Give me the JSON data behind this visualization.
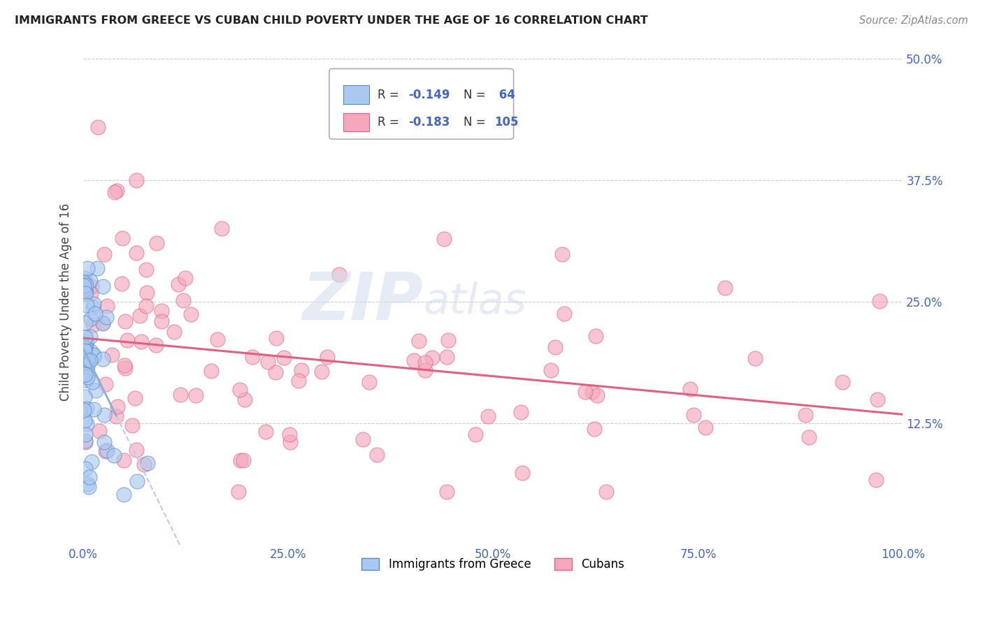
{
  "title": "IMMIGRANTS FROM GREECE VS CUBAN CHILD POVERTY UNDER THE AGE OF 16 CORRELATION CHART",
  "source": "Source: ZipAtlas.com",
  "ylabel": "Child Poverty Under the Age of 16",
  "xlim": [
    0,
    1.0
  ],
  "ylim": [
    0,
    0.5
  ],
  "xticks": [
    0.0,
    0.25,
    0.5,
    0.75,
    1.0
  ],
  "xtick_labels": [
    "0.0%",
    "25.0%",
    "50.0%",
    "75.0%",
    "100.0%"
  ],
  "yticks": [
    0.0,
    0.125,
    0.25,
    0.375,
    0.5
  ],
  "ytick_labels": [
    "",
    "12.5%",
    "25.0%",
    "37.5%",
    "50.0%"
  ],
  "legend_r1": "R = -0.149",
  "legend_n1": "N =  64",
  "legend_r2": "R = -0.183",
  "legend_n2": "N = 105",
  "series1_label": "Immigrants from Greece",
  "series2_label": "Cubans",
  "series1_color": "#aac8f0",
  "series2_color": "#f5a8bc",
  "series1_edge": "#5588cc",
  "series2_edge": "#dd6688",
  "line1_color": "#8ab0d8",
  "line2_color": "#e06080",
  "background_color": "#ffffff",
  "grid_color": "#cccccc",
  "tick_color": "#4466bb"
}
